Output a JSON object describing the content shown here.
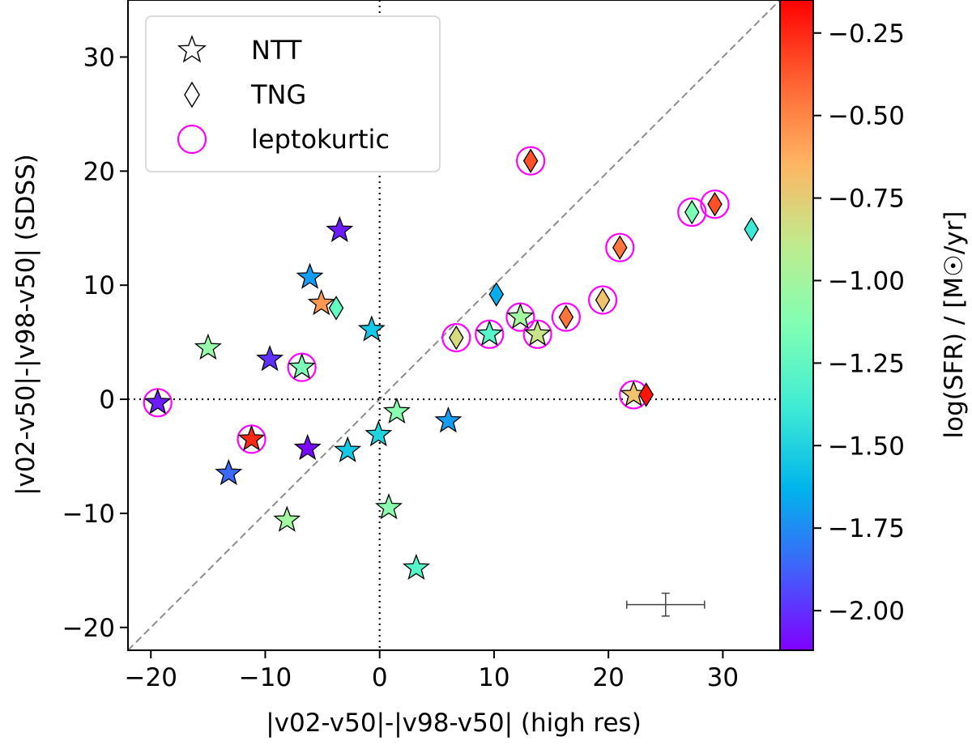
{
  "chart_data": {
    "type": "scatter",
    "xlabel": "|v02-v50|-|v98-v50| (high res)",
    "ylabel": "|v02-v50|-|v98-v50| (SDSS)",
    "xlim": [
      -22,
      35
    ],
    "ylim": [
      -22,
      35
    ],
    "xticks": [
      -20,
      -10,
      0,
      10,
      20,
      30
    ],
    "yticks": [
      -20,
      -10,
      0,
      10,
      20,
      30
    ],
    "grid": false,
    "reference_lines": [
      {
        "kind": "diagonal",
        "style": "dashed",
        "color": "#8c8c8c"
      },
      {
        "kind": "vertical",
        "value": 0,
        "style": "dotted",
        "color": "#000000"
      },
      {
        "kind": "horizontal",
        "value": 0,
        "style": "dotted",
        "color": "#000000"
      }
    ],
    "colorbar": {
      "label": "log(SFR) / [M☉/yr]",
      "range": [
        -2.12,
        -0.15
      ],
      "ticks": [
        -0.25,
        -0.5,
        -0.75,
        -1.0,
        -1.25,
        -1.5,
        -1.75,
        -2.0
      ],
      "tick_labels": [
        "−0.25",
        "−0.50",
        "−0.75",
        "−1.00",
        "−1.25",
        "−1.50",
        "−1.75",
        "−2.00"
      ],
      "colormap": "rainbow"
    },
    "legend": {
      "placement": "upper-left",
      "entries": [
        {
          "marker": "star",
          "label": "NTT"
        },
        {
          "marker": "diamond",
          "label": "TNG"
        },
        {
          "marker": "circle",
          "label": "leptokurtic",
          "color": "#ff00ff"
        }
      ]
    },
    "series": [
      {
        "name": "NTT",
        "marker": "star",
        "points": [
          {
            "x": -19.4,
            "y": -0.3,
            "sfr": -2.05,
            "leptokurtic": true
          },
          {
            "x": -15.0,
            "y": 4.5,
            "sfr": -1.05
          },
          {
            "x": -13.2,
            "y": -6.5,
            "sfr": -1.85
          },
          {
            "x": -11.2,
            "y": -3.5,
            "sfr": -0.25,
            "leptokurtic": true
          },
          {
            "x": -9.6,
            "y": 3.5,
            "sfr": -2.0
          },
          {
            "x": -8.1,
            "y": -10.6,
            "sfr": -1.0
          },
          {
            "x": -6.8,
            "y": 2.8,
            "sfr": -1.15,
            "leptokurtic": true
          },
          {
            "x": -6.3,
            "y": -4.3,
            "sfr": -2.1
          },
          {
            "x": -6.1,
            "y": 10.7,
            "sfr": -1.7
          },
          {
            "x": -5.1,
            "y": 8.4,
            "sfr": -0.55
          },
          {
            "x": -3.5,
            "y": 14.8,
            "sfr": -2.05
          },
          {
            "x": -2.8,
            "y": -4.5,
            "sfr": -1.55
          },
          {
            "x": -0.7,
            "y": 6.1,
            "sfr": -1.55
          },
          {
            "x": -0.1,
            "y": -3.1,
            "sfr": -1.5
          },
          {
            "x": 0.8,
            "y": -9.5,
            "sfr": -1.1
          },
          {
            "x": 1.5,
            "y": -1.1,
            "sfr": -1.1
          },
          {
            "x": 3.2,
            "y": -14.8,
            "sfr": -1.3
          },
          {
            "x": 6.0,
            "y": -1.9,
            "sfr": -1.7
          },
          {
            "x": 9.6,
            "y": 5.7,
            "sfr": -1.3,
            "leptokurtic": true
          },
          {
            "x": 12.3,
            "y": 7.2,
            "sfr": -1.0,
            "leptokurtic": true
          },
          {
            "x": 13.8,
            "y": 5.7,
            "sfr": -0.85,
            "leptokurtic": true
          },
          {
            "x": 22.2,
            "y": 0.4,
            "sfr": -0.7,
            "leptokurtic": true
          }
        ]
      },
      {
        "name": "TNG",
        "marker": "diamond",
        "points": [
          {
            "x": -3.8,
            "y": 8.0,
            "sfr": -1.25
          },
          {
            "x": 6.7,
            "y": 5.4,
            "sfr": -0.8,
            "leptokurtic": true
          },
          {
            "x": 10.2,
            "y": 9.2,
            "sfr": -1.65
          },
          {
            "x": 13.2,
            "y": 20.9,
            "sfr": -0.35,
            "leptokurtic": true
          },
          {
            "x": 16.3,
            "y": 7.2,
            "sfr": -0.45,
            "leptokurtic": true
          },
          {
            "x": 19.5,
            "y": 8.7,
            "sfr": -0.7,
            "leptokurtic": true
          },
          {
            "x": 21.0,
            "y": 13.3,
            "sfr": -0.45,
            "leptokurtic": true
          },
          {
            "x": 23.3,
            "y": 0.4,
            "sfr": -0.2
          },
          {
            "x": 27.3,
            "y": 16.4,
            "sfr": -1.15,
            "leptokurtic": true
          },
          {
            "x": 29.3,
            "y": 17.1,
            "sfr": -0.35,
            "leptokurtic": true
          },
          {
            "x": 32.5,
            "y": 14.9,
            "sfr": -1.4
          }
        ]
      }
    ],
    "error_bar": {
      "x": 25.0,
      "y": -18.0,
      "xerr": 3.4,
      "yerr": 1.0
    }
  }
}
